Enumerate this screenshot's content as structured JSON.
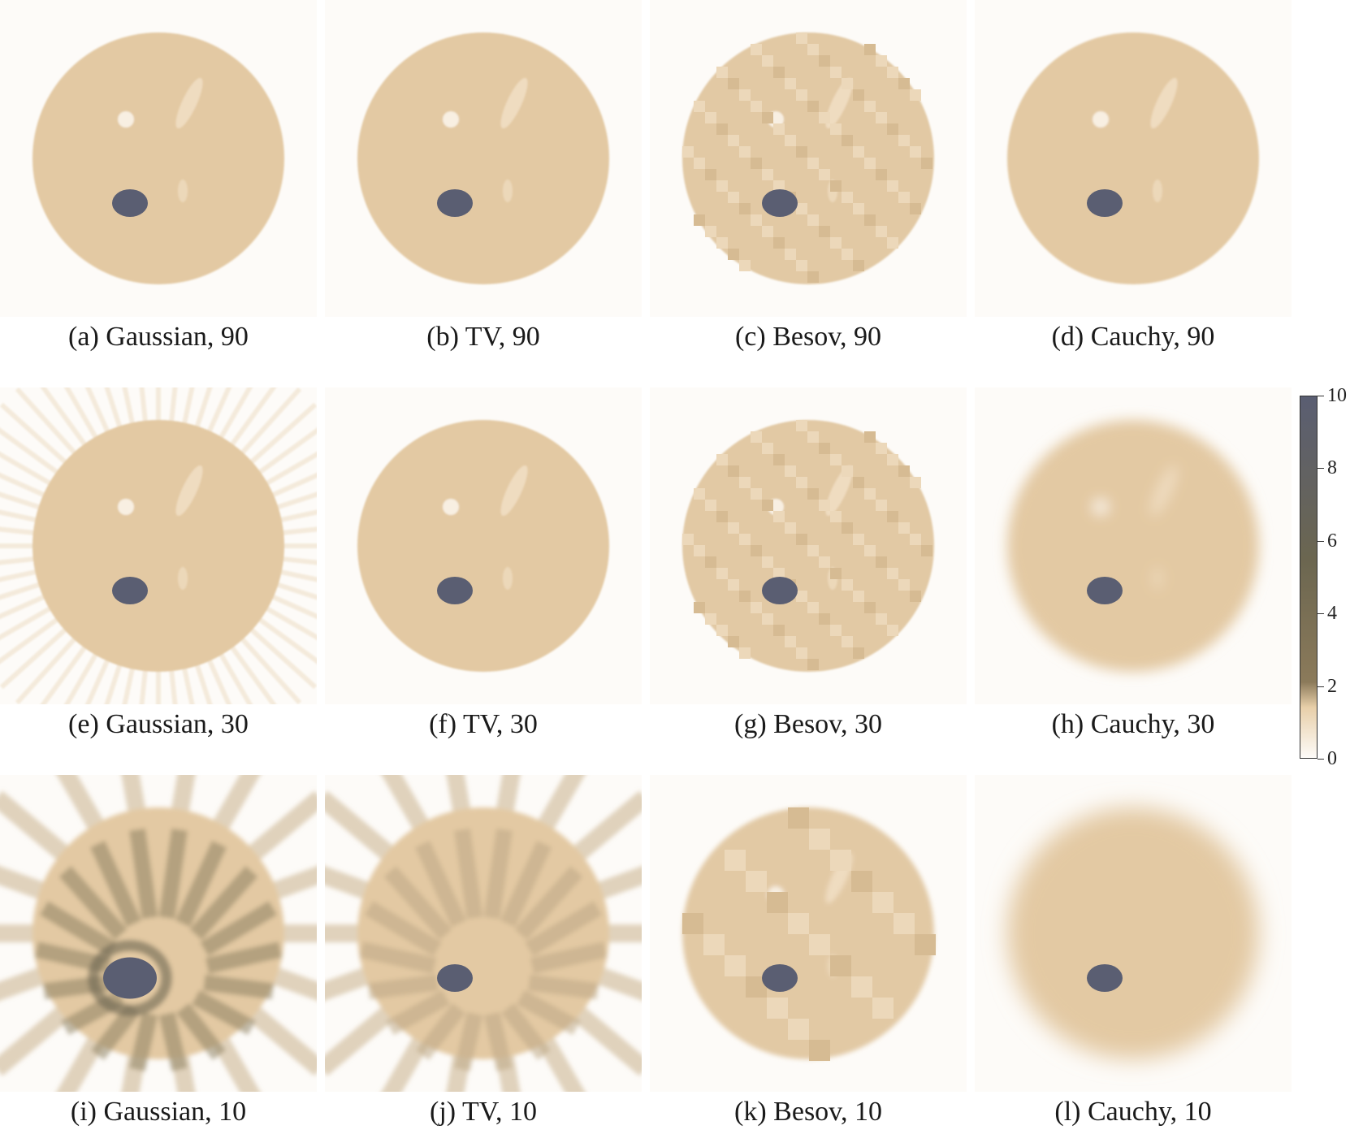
{
  "panels": [
    {
      "label": "(a) Gaussian, 90",
      "prior": "Gaussian",
      "angles": 90
    },
    {
      "label": "(b) TV, 90",
      "prior": "TV",
      "angles": 90
    },
    {
      "label": "(c) Besov, 90",
      "prior": "Besov",
      "angles": 90
    },
    {
      "label": "(d) Cauchy, 90",
      "prior": "Cauchy",
      "angles": 90
    },
    {
      "label": "(e) Gaussian, 30",
      "prior": "Gaussian",
      "angles": 30
    },
    {
      "label": "(f) TV, 30",
      "prior": "TV",
      "angles": 30
    },
    {
      "label": "(g) Besov, 30",
      "prior": "Besov",
      "angles": 30
    },
    {
      "label": "(h) Cauchy, 30",
      "prior": "Cauchy",
      "angles": 30
    },
    {
      "label": "(i) Gaussian, 10",
      "prior": "Gaussian",
      "angles": 10
    },
    {
      "label": "(j) TV, 10",
      "prior": "TV",
      "angles": 10
    },
    {
      "label": "(k) Besov, 10",
      "prior": "Besov",
      "angles": 10
    },
    {
      "label": "(l) Cauchy, 10",
      "prior": "Cauchy",
      "angles": 10
    }
  ],
  "colorbar": {
    "ticks": [
      "10",
      "8",
      "6",
      "4",
      "2",
      "0"
    ],
    "min": 0,
    "max": 10,
    "colors": [
      "#fdfbf8",
      "#e8cfa9",
      "#8b7a5a",
      "#6b6650",
      "#5a5e72"
    ]
  }
}
